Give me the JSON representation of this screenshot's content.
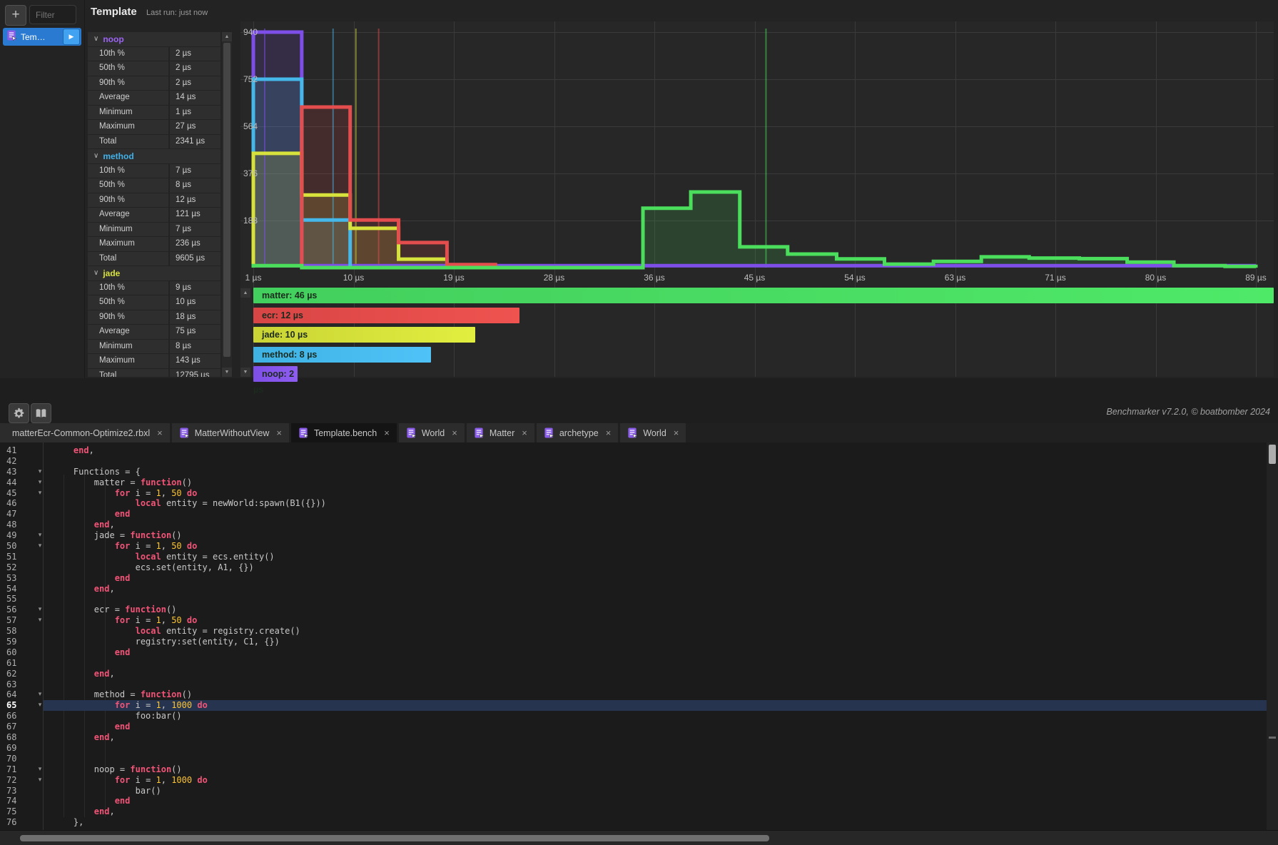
{
  "left_panel": {
    "add_button": "+",
    "filter_placeholder": "Filter",
    "item_label": "Tem…"
  },
  "stats_panel": {
    "title": "Template",
    "last_run": "Last run: just now",
    "row_labels": [
      "10th %",
      "50th %",
      "90th %",
      "Average",
      "Minimum",
      "Maximum",
      "Total"
    ],
    "sections": [
      {
        "name": "noop",
        "color": "#9b64f3",
        "values": [
          "2 µs",
          "2 µs",
          "2 µs",
          "14 µs",
          "1 µs",
          "27 µs",
          "2341 µs"
        ]
      },
      {
        "name": "method",
        "color": "#41b1e8",
        "values": [
          "7 µs",
          "8 µs",
          "12 µs",
          "121 µs",
          "7 µs",
          "236 µs",
          "9605 µs"
        ]
      },
      {
        "name": "jade",
        "color": "#d8e23c",
        "values": [
          "9 µs",
          "10 µs",
          "18 µs",
          "75 µs",
          "8 µs",
          "143 µs",
          "12795 µs"
        ]
      }
    ]
  },
  "chart_data": {
    "type": "step-histogram",
    "x_unit": "µs",
    "x_range": [
      1,
      89
    ],
    "x_tick_labels": [
      "1 µs",
      "10 µs",
      "19 µs",
      "28 µs",
      "36 µs",
      "45 µs",
      "54 µs",
      "63 µs",
      "71 µs",
      "80 µs",
      "89 µs"
    ],
    "y_ticks": [
      188,
      376,
      564,
      752,
      940
    ],
    "y_max": 940,
    "grid": true,
    "series": [
      {
        "name": "noop",
        "color": "#7e4fe8",
        "median_us": 2,
        "steps": [
          [
            1,
            940
          ],
          [
            5.25,
            8
          ],
          [
            89,
            8
          ]
        ]
      },
      {
        "name": "method",
        "color": "#45b7e8",
        "median_us": 8,
        "steps": [
          [
            1,
            752
          ],
          [
            5.25,
            190
          ],
          [
            9.5,
            0
          ]
        ]
      },
      {
        "name": "jade",
        "color": "#d8e23c",
        "median_us": 10,
        "steps": [
          [
            1,
            456
          ],
          [
            5.25,
            290
          ],
          [
            9.5,
            157
          ],
          [
            13.75,
            34
          ],
          [
            18,
            0
          ]
        ]
      },
      {
        "name": "ecr",
        "color": "#e44d4d",
        "median_us": 12,
        "steps": [
          [
            5.25,
            641
          ],
          [
            9.5,
            190
          ],
          [
            13.75,
            100
          ],
          [
            18,
            12
          ],
          [
            22.25,
            0
          ]
        ]
      },
      {
        "name": "matter",
        "color": "#4ade5c",
        "median_us": 46,
        "steps": [
          [
            1,
            8
          ],
          [
            5.25,
            0
          ],
          [
            35.2,
            237
          ],
          [
            39.4,
            302
          ],
          [
            43.7,
            83
          ],
          [
            47.9,
            54
          ],
          [
            52.2,
            35
          ],
          [
            56.4,
            14
          ],
          [
            60.7,
            25
          ],
          [
            64.9,
            43
          ],
          [
            69.1,
            38
          ],
          [
            73.5,
            36
          ],
          [
            77.7,
            22
          ],
          [
            81.8,
            8
          ],
          [
            86.3,
            5
          ],
          [
            89,
            0
          ]
        ]
      }
    ],
    "legend_max": 46,
    "legend": [
      {
        "label": "matter: 46 µs",
        "value": 46,
        "color_from": "#43cf5d",
        "color_to": "#4fe968"
      },
      {
        "label": "ecr: 12 µs",
        "value": 12,
        "color_from": "#d84545",
        "color_to": "#ef5350"
      },
      {
        "label": "jade: 10 µs",
        "value": 10,
        "color_from": "#c9d435",
        "color_to": "#e2ee3f"
      },
      {
        "label": "method: 8 µs",
        "value": 8,
        "color_from": "#3fb2e4",
        "color_to": "#4fc3f7"
      },
      {
        "label": "noop: 2 µs",
        "value": 2,
        "color_from": "#7e4fe8",
        "color_to": "#8e5cf0"
      }
    ]
  },
  "footer": {
    "about": "Benchmarker v7.2.0, © boatbomber 2024"
  },
  "tabs": [
    {
      "label": "matterEcr-Common-Optimize2.rbxl",
      "icon": false,
      "active": false
    },
    {
      "label": "MatterWithoutView",
      "icon": true,
      "active": false
    },
    {
      "label": "Template.bench",
      "icon": true,
      "active": true
    },
    {
      "label": "World",
      "icon": true,
      "active": false
    },
    {
      "label": "Matter",
      "icon": true,
      "active": false
    },
    {
      "label": "archetype",
      "icon": true,
      "active": false
    },
    {
      "label": "World",
      "icon": true,
      "active": false
    }
  ],
  "editor": {
    "first_line": 41,
    "highlight_line": 65,
    "fold_lines": [
      43,
      44,
      45,
      49,
      50,
      56,
      57,
      64,
      65,
      71,
      72
    ],
    "lines": [
      "    end,",
      "",
      "    Functions = {",
      "        matter = function()",
      "            for i = 1, 50 do",
      "                local entity = newWorld:spawn(B1({}))",
      "            end",
      "        end,",
      "        jade = function()",
      "            for i = 1, 50 do",
      "                local entity = ecs.entity()",
      "                ecs.set(entity, A1, {})",
      "            end",
      "        end,",
      "",
      "        ecr = function()",
      "            for i = 1, 50 do",
      "                local entity = registry.create()",
      "                registry:set(entity, C1, {})",
      "            end",
      "",
      "        end,",
      "",
      "        method = function()",
      "            for i = 1, 1000 do",
      "                foo:bar()",
      "            end",
      "        end,",
      "",
      "",
      "        noop = function()",
      "            for i = 1, 1000 do",
      "                bar()",
      "            end",
      "        end,",
      "    },"
    ]
  }
}
